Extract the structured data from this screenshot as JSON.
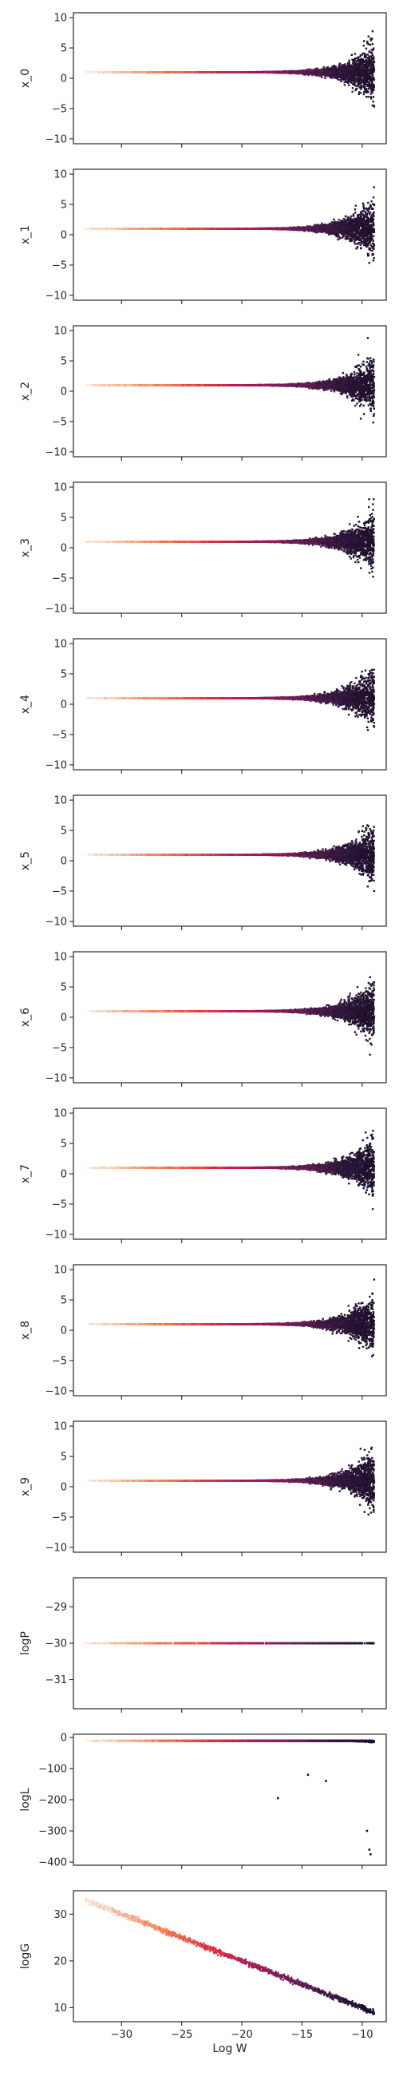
{
  "chart_data": {
    "type": "scatter",
    "shared_x": {
      "label": "Log W",
      "lim": [
        -34,
        -8
      ],
      "ticks": [
        -30,
        -25,
        -20,
        -15,
        -10
      ],
      "tick_labels": [
        "−30",
        "−25",
        "−20",
        "−15",
        "−10"
      ]
    },
    "colormap": [
      "#fcece2",
      "#f6b48f",
      "#f37651",
      "#e13342",
      "#ad1759",
      "#701f57",
      "#35193e",
      "#1a0f2a"
    ],
    "panels": [
      {
        "ylabel": "x_0",
        "kind": "funnel",
        "ylim": [
          -10.8,
          10.8
        ],
        "yticks": [
          10,
          5,
          0,
          -5,
          -10
        ],
        "ytick_labels": [
          "10",
          "5",
          "0",
          "−5",
          "−10"
        ]
      },
      {
        "ylabel": "x_1",
        "kind": "funnel",
        "ylim": [
          -10.8,
          10.8
        ],
        "yticks": [
          10,
          5,
          0,
          -5,
          -10
        ],
        "ytick_labels": [
          "10",
          "5",
          "0",
          "−5",
          "−10"
        ]
      },
      {
        "ylabel": "x_2",
        "kind": "funnel",
        "ylim": [
          -10.8,
          10.8
        ],
        "yticks": [
          10,
          5,
          0,
          -5,
          -10
        ],
        "ytick_labels": [
          "10",
          "5",
          "0",
          "−5",
          "−10"
        ]
      },
      {
        "ylabel": "x_3",
        "kind": "funnel",
        "ylim": [
          -10.8,
          10.8
        ],
        "yticks": [
          10,
          5,
          0,
          -5,
          -10
        ],
        "ytick_labels": [
          "10",
          "5",
          "0",
          "−5",
          "−10"
        ]
      },
      {
        "ylabel": "x_4",
        "kind": "funnel",
        "ylim": [
          -10.8,
          10.8
        ],
        "yticks": [
          10,
          5,
          0,
          -5,
          -10
        ],
        "ytick_labels": [
          "10",
          "5",
          "0",
          "−5",
          "−10"
        ]
      },
      {
        "ylabel": "x_5",
        "kind": "funnel",
        "ylim": [
          -10.8,
          10.8
        ],
        "yticks": [
          10,
          5,
          0,
          -5,
          -10
        ],
        "ytick_labels": [
          "10",
          "5",
          "0",
          "−5",
          "−10"
        ]
      },
      {
        "ylabel": "x_6",
        "kind": "funnel",
        "ylim": [
          -10.8,
          10.8
        ],
        "yticks": [
          10,
          5,
          0,
          -5,
          -10
        ],
        "ytick_labels": [
          "10",
          "5",
          "0",
          "−5",
          "−10"
        ]
      },
      {
        "ylabel": "x_7",
        "kind": "funnel",
        "ylim": [
          -10.8,
          10.8
        ],
        "yticks": [
          10,
          5,
          0,
          -5,
          -10
        ],
        "ytick_labels": [
          "10",
          "5",
          "0",
          "−5",
          "−10"
        ]
      },
      {
        "ylabel": "x_8",
        "kind": "funnel",
        "ylim": [
          -10.8,
          10.8
        ],
        "yticks": [
          10,
          5,
          0,
          -5,
          -10
        ],
        "ytick_labels": [
          "10",
          "5",
          "0",
          "−5",
          "−10"
        ]
      },
      {
        "ylabel": "x_9",
        "kind": "funnel",
        "ylim": [
          -10.8,
          10.8
        ],
        "yticks": [
          10,
          5,
          0,
          -5,
          -10
        ],
        "ytick_labels": [
          "10",
          "5",
          "0",
          "−5",
          "−10"
        ]
      },
      {
        "ylabel": "logP",
        "kind": "flat",
        "value": -30,
        "ylim": [
          -31.8,
          -28.2
        ],
        "yticks": [
          -29,
          -30,
          -31
        ],
        "ytick_labels": [
          "−29",
          "−30",
          "−31"
        ]
      },
      {
        "ylabel": "logL",
        "kind": "loglik",
        "ylim": [
          -410,
          10
        ],
        "yticks": [
          0,
          -100,
          -200,
          -300,
          -400
        ],
        "ytick_labels": [
          "0",
          "−100",
          "−200",
          "−300",
          "−400"
        ]
      },
      {
        "ylabel": "logG",
        "kind": "linear",
        "line": [
          [
            -33,
            33
          ],
          [
            -9,
            9
          ]
        ],
        "ylim": [
          7,
          35
        ],
        "yticks": [
          30,
          20,
          10
        ],
        "ytick_labels": [
          "30",
          "20",
          "10"
        ]
      }
    ]
  }
}
